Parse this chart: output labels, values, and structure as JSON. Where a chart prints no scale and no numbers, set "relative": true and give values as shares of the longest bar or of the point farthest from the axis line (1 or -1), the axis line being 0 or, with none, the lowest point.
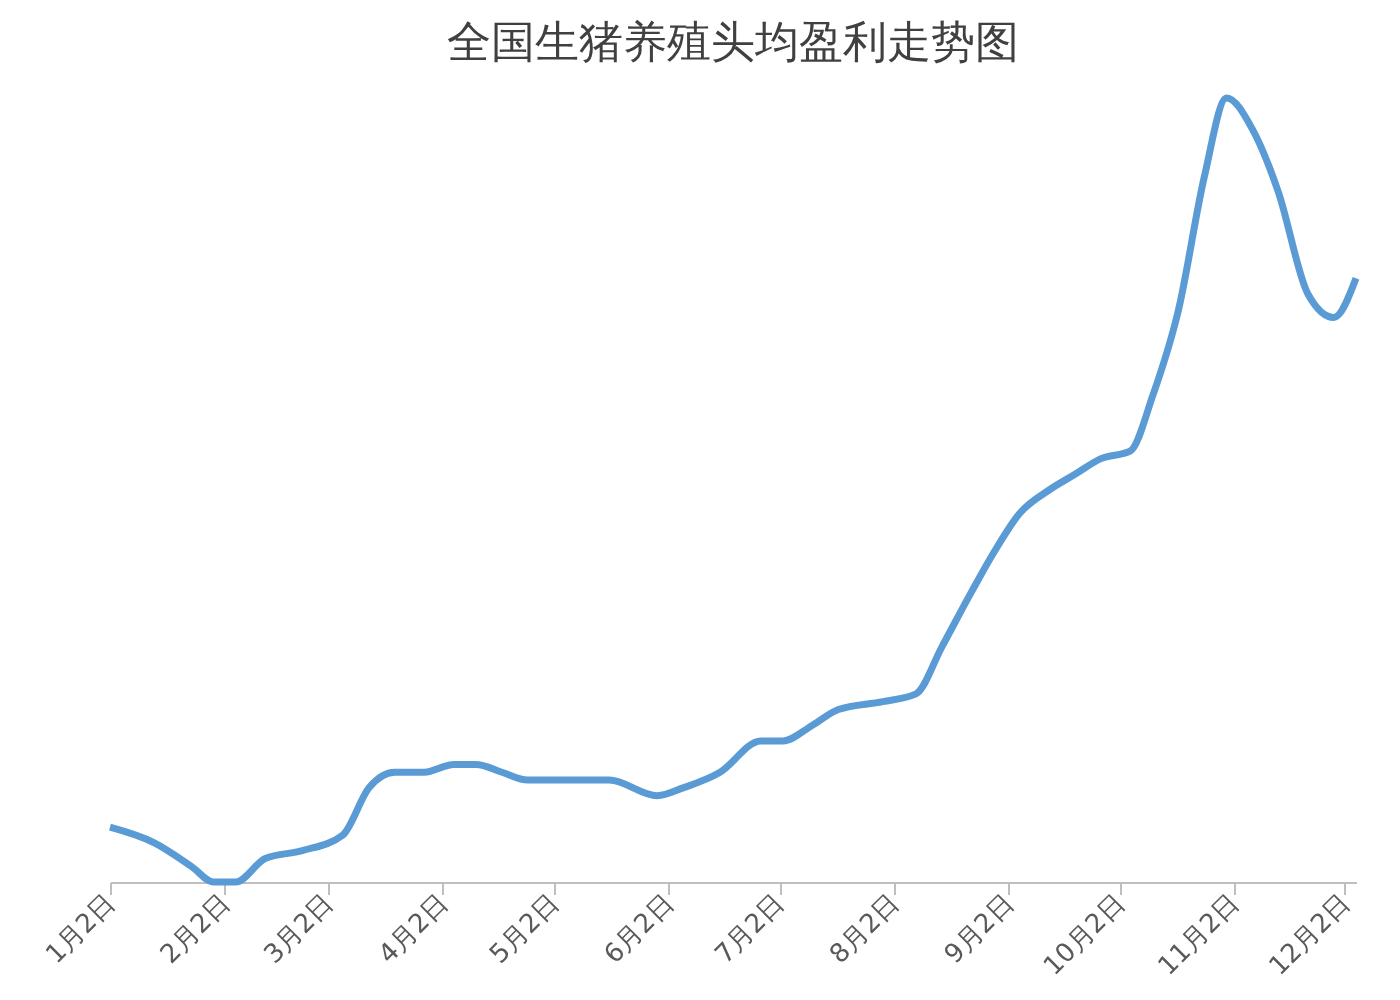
{
  "chart_data": {
    "type": "line",
    "title": "全国生猪养殖头均盈利走势图",
    "relative": true,
    "x": [
      "--01-02",
      "--01-14",
      "--01-24",
      "--01-30",
      "--02-05",
      "--02-13",
      "--02-23",
      "--03-06",
      "--03-13",
      "--03-20",
      "--03-28",
      "--04-05",
      "--04-11",
      "--04-18",
      "--04-25",
      "--05-03",
      "--05-10",
      "--05-17",
      "--05-30",
      "--06-06",
      "--06-16",
      "--06-27",
      "--07-03",
      "--07-11",
      "--07-18",
      "--07-30",
      "--08-08",
      "--08-15",
      "--08-23",
      "--08-29",
      "--09-05",
      "--09-13",
      "--09-20",
      "--09-27",
      "--10-05",
      "--10-11",
      "--10-18",
      "--10-25",
      "--10-31",
      "--11-07",
      "--11-14",
      "--11-22",
      "--11-29",
      "--12-05"
    ],
    "series": [
      {
        "color": "#5b9bd5",
        "values": [
          0.07,
          0.05,
          0.02,
          0,
          0,
          0.03,
          0.04,
          0.06,
          0.12,
          0.14,
          0.14,
          0.15,
          0.15,
          0.14,
          0.13,
          0.13,
          0.13,
          0.13,
          0.11,
          0.12,
          0.14,
          0.18,
          0.18,
          0.2,
          0.22,
          0.23,
          0.24,
          0.3,
          0.37,
          0.42,
          0.47,
          0.5,
          0.52,
          0.54,
          0.55,
          0.62,
          0.73,
          0.9,
          1,
          0.96,
          0.88,
          0.75,
          0.72,
          0.77
        ]
      }
    ],
    "xlim": [
      "--01-02",
      "--12-05"
    ],
    "xticks": [
      {
        "value": "--01-02",
        "label": "1月2日"
      },
      {
        "value": "--02-02",
        "label": "2月2日"
      },
      {
        "value": "--03-02",
        "label": "3月2日"
      },
      {
        "value": "--04-02",
        "label": "4月2日"
      },
      {
        "value": "--05-02",
        "label": "5月2日"
      },
      {
        "value": "--06-02",
        "label": "6月2日"
      },
      {
        "value": "--07-02",
        "label": "7月2日"
      },
      {
        "value": "--08-02",
        "label": "8月2日"
      },
      {
        "value": "--09-02",
        "label": "9月2日"
      },
      {
        "value": "--10-02",
        "label": "10月2日"
      },
      {
        "value": "--11-02",
        "label": "11月2日"
      },
      {
        "value": "--12-02",
        "label": "12月2日"
      }
    ],
    "grid": false,
    "legend": false,
    "marker": "none",
    "line_style": "solid"
  }
}
